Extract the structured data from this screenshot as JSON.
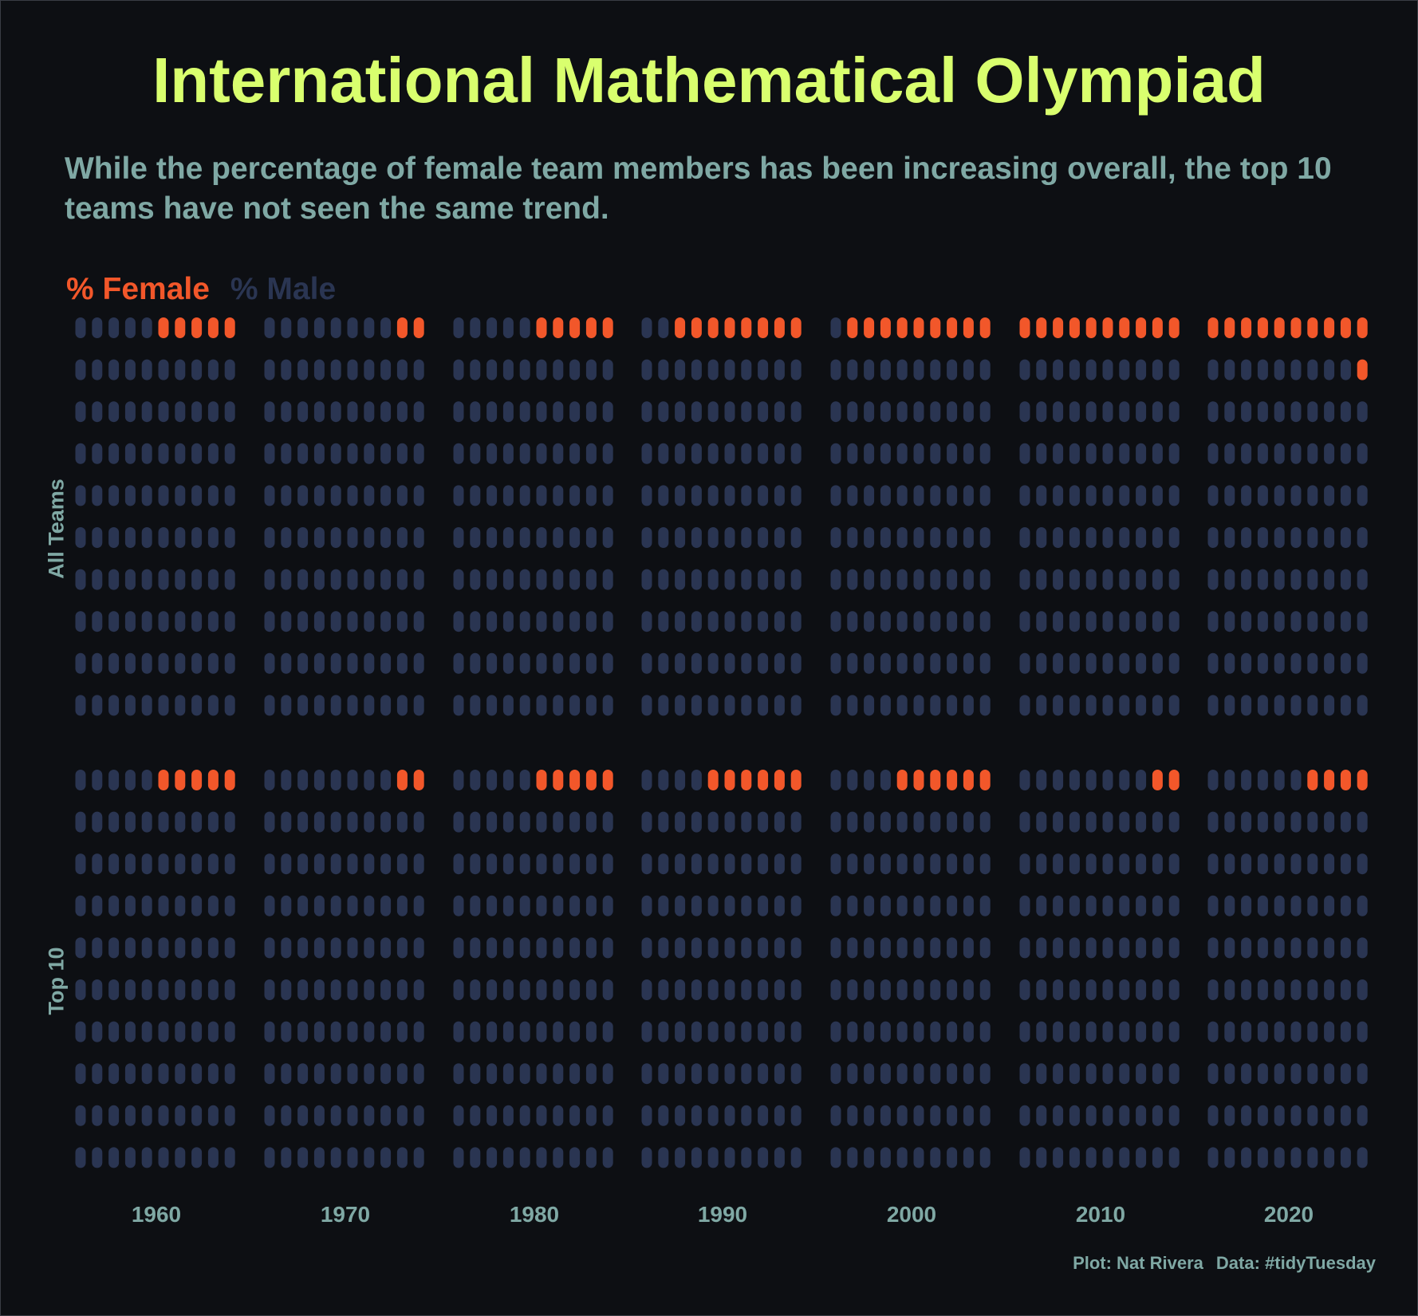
{
  "title": "International Mathematical Olympiad",
  "subtitle": "While the percentage of female team members has been increasing overall, the top 10 teams have not seen the same trend.",
  "legend": {
    "female": "% Female",
    "male": "% Male"
  },
  "caption": {
    "plot": "Plot: Nat Rivera",
    "data": "Data: #tidyTuesday"
  },
  "colors": {
    "female": "#f2572a",
    "male": "#2a3552",
    "background": "#0d0f13",
    "title": "#d9ff6e",
    "text": "#7fa8a4"
  },
  "chart_data": {
    "type": "waffle",
    "x_label": "",
    "y_label": "",
    "categories": [
      "1960",
      "1970",
      "1980",
      "1990",
      "2000",
      "2010",
      "2020"
    ],
    "units_per_panel": 100,
    "series": [
      {
        "name": "All Teams",
        "female_percent": [
          5,
          2,
          5,
          8,
          9,
          10,
          11
        ]
      },
      {
        "name": "Top 10",
        "female_percent": [
          5,
          2,
          5,
          6,
          6,
          2,
          4
        ]
      }
    ]
  }
}
